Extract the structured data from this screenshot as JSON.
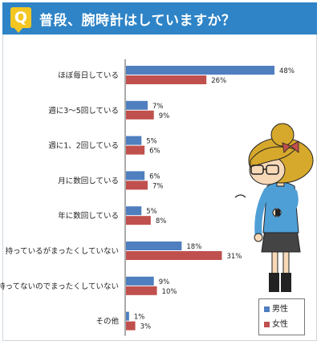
{
  "header": {
    "badge": "Q",
    "question": "普段、腕時計はしていますか？"
  },
  "legend": {
    "male": "男性",
    "female": "女性"
  },
  "colors": {
    "male": "#4f7fbf",
    "female": "#c0504d",
    "header": "#2e84c7",
    "badge": "#f3c622"
  },
  "chart_data": {
    "type": "bar",
    "orientation": "horizontal",
    "categories": [
      "ほぼ毎日している",
      "週に3～5回している",
      "週に1、2回している",
      "月に数回している",
      "年に数回している",
      "持っているがまったくしていない",
      "持ってないのでまったくしていない",
      "その他"
    ],
    "series": [
      {
        "name": "男性",
        "values": [
          48,
          7,
          5,
          6,
          5,
          18,
          9,
          1
        ]
      },
      {
        "name": "女性",
        "values": [
          26,
          9,
          6,
          7,
          8,
          31,
          10,
          3
        ]
      }
    ],
    "value_suffix": "%",
    "xlim": [
      0,
      50
    ],
    "legend_position": "bottom-right",
    "grid": false
  }
}
